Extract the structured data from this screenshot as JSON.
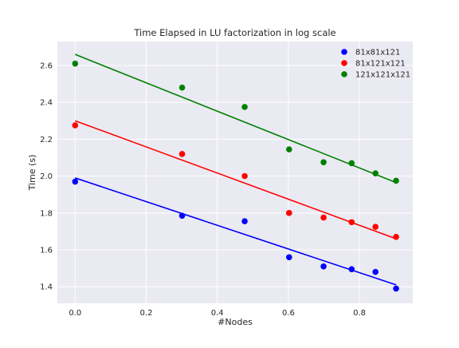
{
  "chart_data": {
    "type": "scatter",
    "title": "Time Elapsed in LU factorization in log scale",
    "xlabel": "#Nodes",
    "ylabel": "Time (s)",
    "xlim": [
      -0.05,
      0.95
    ],
    "ylim": [
      1.31,
      2.73
    ],
    "xticks": [
      0.0,
      0.2,
      0.4,
      0.6,
      0.8
    ],
    "xtick_labels": [
      "0.0",
      "0.2",
      "0.4",
      "0.6",
      "0.8"
    ],
    "yticks": [
      1.4,
      1.6,
      1.8,
      2.0,
      2.2,
      2.4,
      2.6
    ],
    "ytick_labels": [
      "1.4",
      "1.6",
      "1.8",
      "2.0",
      "2.2",
      "2.4",
      "2.6"
    ],
    "grid": true,
    "legend_position": "top-right",
    "background": "#EAEAF2",
    "series": [
      {
        "name": "81x81x121",
        "color": "#0000FF",
        "x": [
          0.0,
          0.301,
          0.477,
          0.602,
          0.699,
          0.778,
          0.845,
          0.903
        ],
        "y": [
          1.97,
          1.785,
          1.755,
          1.56,
          1.51,
          1.495,
          1.48,
          1.39
        ],
        "fit": {
          "x": [
            0.0,
            0.903
          ],
          "y": [
            1.99,
            1.41
          ]
        }
      },
      {
        "name": "81x121x121",
        "color": "#FF0000",
        "x": [
          0.0,
          0.301,
          0.477,
          0.602,
          0.699,
          0.778,
          0.845,
          0.903
        ],
        "y": [
          2.275,
          2.12,
          2.0,
          1.8,
          1.775,
          1.75,
          1.725,
          1.67
        ],
        "fit": {
          "x": [
            0.0,
            0.903
          ],
          "y": [
            2.3,
            1.66
          ]
        }
      },
      {
        "name": "121x121x121",
        "color": "#008000",
        "x": [
          0.0,
          0.301,
          0.477,
          0.602,
          0.699,
          0.778,
          0.845,
          0.903
        ],
        "y": [
          2.61,
          2.48,
          2.375,
          2.145,
          2.075,
          2.07,
          2.015,
          1.975
        ],
        "fit": {
          "x": [
            0.0,
            0.903
          ],
          "y": [
            2.66,
            1.965
          ]
        }
      }
    ]
  }
}
